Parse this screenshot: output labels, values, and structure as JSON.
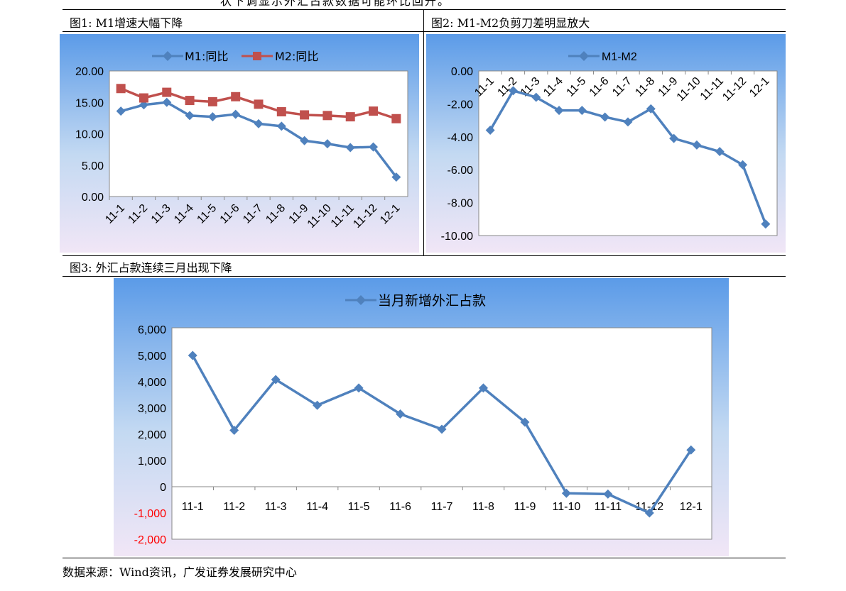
{
  "top_text": "状下调显示外汇占款数据可能环比回升。",
  "fig1_caption": "图1: M1增速大幅下降",
  "fig2_caption": "图2: M1-M2负剪刀差明显放大",
  "fig3_caption": "图3: 外汇占款连续三月出现下降",
  "source": "数据来源：Wind资讯，广发证券发展研究中心",
  "chart_data": [
    {
      "type": "line",
      "categories": [
        "11-1",
        "11-2",
        "11-3",
        "11-4",
        "11-5",
        "11-6",
        "11-7",
        "11-8",
        "11-9",
        "11-10",
        "11-11",
        "11-12",
        "12-1"
      ],
      "series": [
        {
          "name": "M1:同比",
          "color": "#4F81BD",
          "marker": "diamond",
          "values": [
            13.6,
            14.6,
            15.0,
            12.9,
            12.7,
            13.1,
            11.6,
            11.2,
            8.9,
            8.4,
            7.8,
            7.9,
            3.1
          ]
        },
        {
          "name": "M2:同比",
          "color": "#C0504D",
          "marker": "square",
          "values": [
            17.2,
            15.7,
            16.6,
            15.3,
            15.1,
            15.9,
            14.7,
            13.5,
            13.0,
            12.9,
            12.7,
            13.6,
            12.4
          ]
        }
      ],
      "ylim": [
        0,
        20
      ],
      "yticks": [
        "20.00",
        "15.00",
        "10.00",
        "5.00",
        "0.00"
      ],
      "legend": "top"
    },
    {
      "type": "line",
      "categories": [
        "11-1",
        "11-2",
        "11-3",
        "11-4",
        "11-5",
        "11-6",
        "11-7",
        "11-8",
        "11-9",
        "11-10",
        "11-11",
        "11-12",
        "12-1"
      ],
      "series": [
        {
          "name": "M1-M2",
          "color": "#4F81BD",
          "marker": "diamond",
          "values": [
            -3.6,
            -1.2,
            -1.6,
            -2.4,
            -2.4,
            -2.8,
            -3.1,
            -2.3,
            -4.1,
            -4.5,
            -4.9,
            -5.7,
            -9.3
          ]
        }
      ],
      "ylim": [
        -10,
        0
      ],
      "yticks": [
        "0.00",
        "-2.00",
        "-4.00",
        "-6.00",
        "-8.00",
        "-10.00"
      ],
      "legend": "top"
    },
    {
      "type": "line",
      "categories": [
        "11-1",
        "11-2",
        "11-3",
        "11-4",
        "11-5",
        "11-6",
        "11-7",
        "11-8",
        "11-9",
        "11-10",
        "11-11",
        "11-12",
        "12-1"
      ],
      "series": [
        {
          "name": "当月新增外汇占款",
          "color": "#4F81BD",
          "marker": "diamond",
          "values": [
            5000,
            2150,
            4080,
            3100,
            3760,
            2770,
            2190,
            3760,
            2460,
            -250,
            -280,
            -1000,
            1400
          ]
        }
      ],
      "ylim": [
        -2000,
        6000
      ],
      "yticks": [
        "6,000",
        "5,000",
        "4,000",
        "3,000",
        "2,000",
        "1,000",
        "0",
        "-1,000",
        "-2,000"
      ],
      "negative_tick_color": "#FF0000",
      "legend": "top"
    }
  ]
}
